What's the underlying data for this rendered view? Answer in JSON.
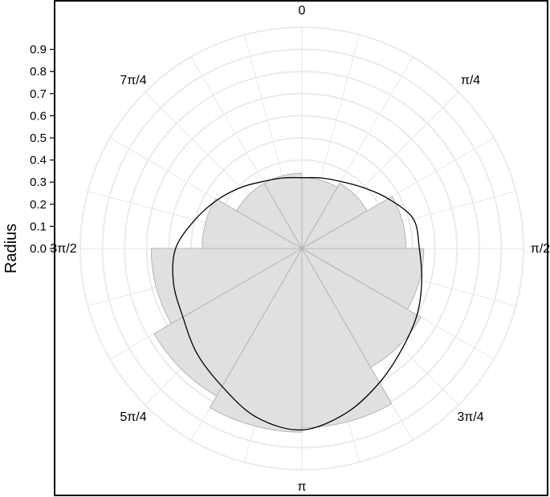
{
  "chart_data": {
    "type": "polar-histogram",
    "ylabel": "Radius",
    "radial_ticks": [
      "0.0",
      "0.1",
      "0.2",
      "0.3",
      "0.4",
      "0.5",
      "0.6",
      "0.7",
      "0.8",
      "0.9"
    ],
    "rlim": [
      0,
      1.0
    ],
    "angle_labels": [
      "0",
      "π/4",
      "π/2",
      "3π/4",
      "π",
      "5π/4",
      "3π/2",
      "7π/4"
    ],
    "angle_direction": "clockwise",
    "angle_zero": "top",
    "bins": 12,
    "bar_values": [
      0.32,
      0.34,
      0.47,
      0.55,
      0.62,
      0.81,
      0.83,
      0.77,
      0.68,
      0.45,
      0.34,
      0.34
    ],
    "density_curve": [
      {
        "theta_deg": 0,
        "r": 0.32
      },
      {
        "theta_deg": 15,
        "r": 0.33
      },
      {
        "theta_deg": 30,
        "r": 0.35
      },
      {
        "theta_deg": 45,
        "r": 0.39
      },
      {
        "theta_deg": 60,
        "r": 0.45
      },
      {
        "theta_deg": 75,
        "r": 0.52
      },
      {
        "theta_deg": 90,
        "r": 0.53
      },
      {
        "theta_deg": 105,
        "r": 0.56
      },
      {
        "theta_deg": 120,
        "r": 0.6
      },
      {
        "theta_deg": 135,
        "r": 0.64
      },
      {
        "theta_deg": 150,
        "r": 0.7
      },
      {
        "theta_deg": 165,
        "r": 0.77
      },
      {
        "theta_deg": 180,
        "r": 0.82
      },
      {
        "theta_deg": 195,
        "r": 0.79
      },
      {
        "theta_deg": 210,
        "r": 0.72
      },
      {
        "theta_deg": 225,
        "r": 0.67
      },
      {
        "theta_deg": 240,
        "r": 0.62
      },
      {
        "theta_deg": 255,
        "r": 0.6
      },
      {
        "theta_deg": 270,
        "r": 0.57
      },
      {
        "theta_deg": 285,
        "r": 0.5
      },
      {
        "theta_deg": 300,
        "r": 0.44
      },
      {
        "theta_deg": 315,
        "r": 0.39
      },
      {
        "theta_deg": 330,
        "r": 0.35
      },
      {
        "theta_deg": 345,
        "r": 0.33
      },
      {
        "theta_deg": 360,
        "r": 0.32
      }
    ],
    "grid": true,
    "colors": {
      "bar_fill": "#e0e0e0",
      "bar_stroke": "#b5b5b5",
      "grid": "#ebebeb",
      "curve": "#000000",
      "frame": "#000000"
    }
  }
}
